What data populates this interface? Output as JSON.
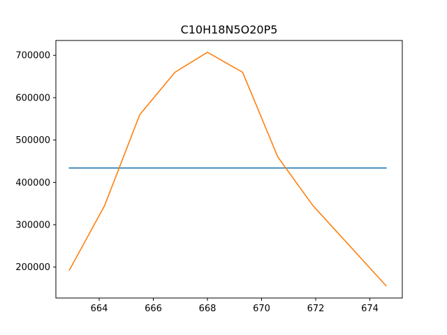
{
  "chart_data": {
    "type": "line",
    "title": "C10H18N5O20P5",
    "xlabel": "",
    "ylabel": "",
    "xlim": [
      662.4,
      675.2
    ],
    "ylim": [
      127000,
      735000
    ],
    "xticks": [
      664,
      666,
      668,
      670,
      672,
      674
    ],
    "yticks": [
      200000,
      300000,
      400000,
      500000,
      600000,
      700000
    ],
    "xtick_labels": [
      "664",
      "666",
      "668",
      "670",
      "672",
      "674"
    ],
    "ytick_labels": [
      "200000",
      "300000",
      "400000",
      "500000",
      "600000",
      "700000"
    ],
    "grid": false,
    "series": [
      {
        "color": "#1f77b4",
        "x": [
          662.9,
          674.6
        ],
        "y": [
          434000,
          434000
        ]
      },
      {
        "color": "#ff7f0e",
        "x": [
          662.9,
          664.2,
          665.5,
          666.8,
          668.0,
          669.3,
          670.6,
          671.9,
          674.6
        ],
        "y": [
          193000,
          345000,
          560000,
          660000,
          707000,
          660000,
          460000,
          345000,
          156000
        ]
      }
    ]
  }
}
